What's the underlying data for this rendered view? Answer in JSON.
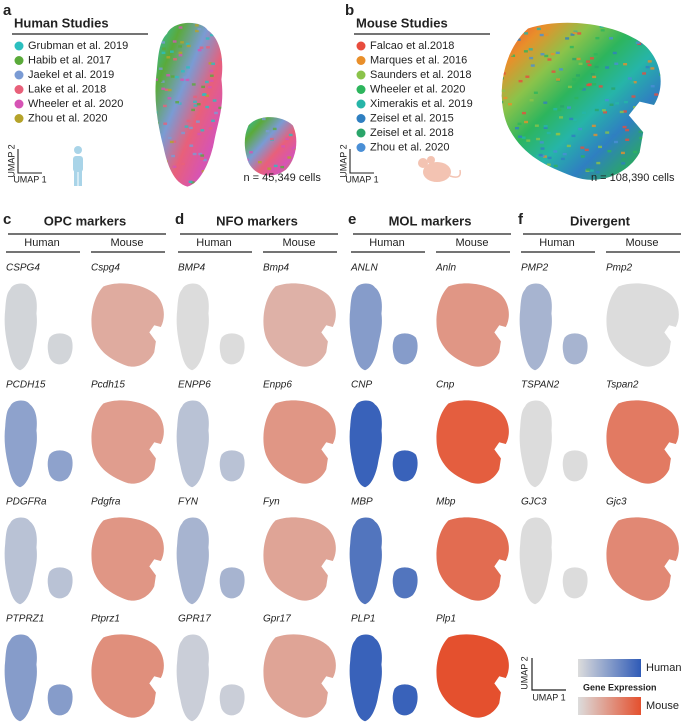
{
  "panel_a": {
    "letter": "a",
    "title": "Human Studies",
    "studies": [
      {
        "name": "Grubman et al. 2019",
        "color": "#2bbfbf"
      },
      {
        "name": "Habib et al. 2017",
        "color": "#5aaa3a"
      },
      {
        "name": "Jaekel et al. 2019",
        "color": "#7a9bd4"
      },
      {
        "name": "Lake et al. 2018",
        "color": "#e8607a"
      },
      {
        "name": "Wheeler et al. 2020",
        "color": "#d654b5"
      },
      {
        "name": "Zhou et al. 2020",
        "color": "#b5a32a"
      }
    ],
    "cell_count": "n = 45,349 cells",
    "umap_y": "UMAP 2",
    "umap_x": "UMAP 1"
  },
  "panel_b": {
    "letter": "b",
    "title": "Mouse Studies",
    "studies": [
      {
        "name": "Falcao et al.2018",
        "color": "#e84c3d"
      },
      {
        "name": "Marques et al. 2016",
        "color": "#e98f2a"
      },
      {
        "name": "Saunders et al. 2018",
        "color": "#8bc34a"
      },
      {
        "name": "Wheeler et al. 2020",
        "color": "#2db55d"
      },
      {
        "name": "Ximerakis et al. 2019",
        "color": "#26b5a8"
      },
      {
        "name": "Zeisel et al. 2015",
        "color": "#2f7fc1"
      },
      {
        "name": "Zeisel et al. 2018",
        "color": "#2aa56a"
      },
      {
        "name": "Zhou et al. 2020",
        "color": "#4a8fd6"
      }
    ],
    "cell_count": "n = 108,390 cells",
    "umap_y": "UMAP 2",
    "umap_x": "UMAP 1"
  },
  "marker_panels": [
    {
      "letter": "c",
      "title": "OPC markers",
      "columns": [
        "Human",
        "Mouse"
      ],
      "genes": [
        [
          "CSPG4",
          "Cspg4"
        ],
        [
          "PCDH15",
          "Pcdh15"
        ],
        [
          "PDGFRa",
          "Pdgfra"
        ],
        [
          "PTPRZ1",
          "Ptprz1"
        ]
      ]
    },
    {
      "letter": "d",
      "title": "NFO markers",
      "columns": [
        "Human",
        "Mouse"
      ],
      "genes": [
        [
          "BMP4",
          "Bmp4"
        ],
        [
          "ENPP6",
          "Enpp6"
        ],
        [
          "FYN",
          "Fyn"
        ],
        [
          "GPR17",
          "Gpr17"
        ]
      ]
    },
    {
      "letter": "e",
      "title": "MOL markers",
      "columns": [
        "Human",
        "Mouse"
      ],
      "genes": [
        [
          "ANLN",
          "Anln"
        ],
        [
          "CNP",
          "Cnp"
        ],
        [
          "MBP",
          "Mbp"
        ],
        [
          "PLP1",
          "Plp1"
        ]
      ]
    },
    {
      "letter": "f",
      "title": "Divergent",
      "columns": [
        "Human",
        "Mouse"
      ],
      "genes": [
        [
          "PMP2",
          "Pmp2"
        ],
        [
          "TSPAN2",
          "Tspan2"
        ],
        [
          "GJC3",
          "Gjc3"
        ]
      ]
    }
  ],
  "legend": {
    "umap_y": "UMAP 2",
    "umap_x": "UMAP 1",
    "human": "Human",
    "title": "Gene Expression",
    "mouse": "Mouse"
  }
}
